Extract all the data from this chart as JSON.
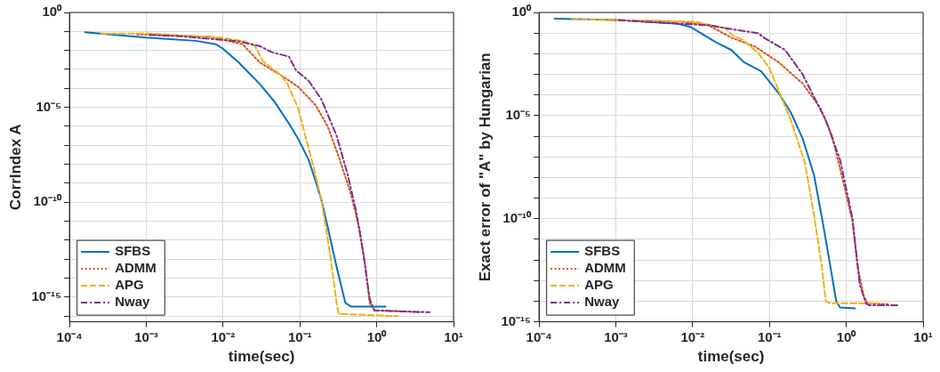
{
  "chart_data": [
    {
      "type": "line",
      "xlabel": "time(sec)",
      "ylabel": "CorrIndex A",
      "log": "xy",
      "grid": true,
      "legend": "bottom left",
      "marker": "none",
      "xlim": [
        0.0001,
        10
      ],
      "xticks": [
        {
          "value": 0.0001,
          "label": "10⁻⁴"
        },
        {
          "value": 0.001,
          "label": "10⁻³"
        },
        {
          "value": 0.01,
          "label": "10⁻²"
        },
        {
          "value": 0.1,
          "label": "10⁻¹"
        },
        {
          "value": 1,
          "label": "10⁰"
        },
        {
          "value": 10,
          "label": "10¹"
        }
      ],
      "ylim": [
        5e-17,
        1
      ],
      "yticks": [
        {
          "value": 1,
          "label": "10⁰"
        },
        {
          "value": 0.1,
          "label": null
        },
        {
          "value": 0.01,
          "label": null
        },
        {
          "value": 0.001,
          "label": null
        },
        {
          "value": 0.0001,
          "label": null
        },
        {
          "value": 1e-05,
          "label": "10⁻⁵"
        },
        {
          "value": 1e-06,
          "label": null
        },
        {
          "value": 1e-07,
          "label": null
        },
        {
          "value": 1e-08,
          "label": null
        },
        {
          "value": 1e-09,
          "label": null
        },
        {
          "value": 1e-10,
          "label": "10⁻¹⁰"
        },
        {
          "value": 1e-11,
          "label": null
        },
        {
          "value": 1e-12,
          "label": null
        },
        {
          "value": 1e-13,
          "label": null
        },
        {
          "value": 1e-14,
          "label": null
        },
        {
          "value": 1e-15,
          "label": "10⁻¹⁵"
        },
        {
          "value": 1e-16,
          "label": null
        }
      ],
      "series": [
        {
          "name": "SFBS",
          "color": "#0072bd",
          "line_style": "solid",
          "x": [
            0.00016,
            0.001,
            0.0044,
            0.0081,
            0.01,
            0.016,
            0.021,
            0.03,
            0.047,
            0.072,
            0.095,
            0.13,
            0.16,
            0.19,
            0.23,
            0.3,
            0.39,
            0.46,
            1.3
          ],
          "values": [
            0.091,
            0.047,
            0.032,
            0.021,
            0.012,
            0.0023,
            0.00074,
            0.00017,
            1.9e-05,
            1.4e-06,
            2.2e-07,
            1.7e-08,
            1.3e-09,
            1.4e-10,
            5e-12,
            4e-14,
            5e-16,
            3.2e-16,
            3.2e-16
          ]
        },
        {
          "name": "ADMM",
          "color": "#d95319",
          "line_style": "dotted",
          "x": [
            0.00076,
            0.0068,
            0.018,
            0.03,
            0.056,
            0.095,
            0.16,
            0.23,
            0.32,
            0.46,
            0.6,
            0.71,
            0.81,
            0.93,
            3.8
          ],
          "values": [
            0.07,
            0.052,
            0.021,
            0.0023,
            0.00051,
            0.00012,
            1.3e-05,
            9.8e-07,
            2.5e-08,
            2.9e-10,
            3.5e-12,
            4.2e-14,
            5e-16,
            2e-16,
            1.6e-16
          ]
        },
        {
          "name": "APG",
          "color": "#edb120",
          "line_style": "dashed",
          "x": [
            0.00026,
            0.0012,
            0.0095,
            0.019,
            0.026,
            0.033,
            0.056,
            0.069,
            0.095,
            0.12,
            0.15,
            0.19,
            0.25,
            0.3,
            0.32,
            1.9
          ],
          "values": [
            0.076,
            0.076,
            0.047,
            0.03,
            0.017,
            0.0027,
            0.00051,
            0.00017,
            8.9e-06,
            2.2e-07,
            7.9e-09,
            1.4e-10,
            1.3e-13,
            5e-16,
            1.3e-16,
            1e-16
          ]
        },
        {
          "name": "Nway",
          "color": "#7e2f8e",
          "line_style": "dashdot",
          "x": [
            0.0011,
            0.0028,
            0.016,
            0.03,
            0.043,
            0.072,
            0.089,
            0.13,
            0.19,
            0.3,
            0.42,
            0.54,
            0.68,
            0.81,
            0.93,
            4.9
          ],
          "values": [
            0.065,
            0.056,
            0.03,
            0.017,
            0.0081,
            0.0047,
            0.00089,
            0.00025,
            2.7e-05,
            3.2e-07,
            2.7e-09,
            3.2e-11,
            1.3e-13,
            7.9e-16,
            2e-16,
            1.6e-16
          ]
        }
      ]
    },
    {
      "type": "line",
      "xlabel": "time(sec)",
      "ylabel": "Exact error of \"A\" by Hungarian",
      "log": "xy",
      "grid": true,
      "legend": "bottom left",
      "marker": "none",
      "xlim": [
        0.0001,
        10
      ],
      "xticks": [
        {
          "value": 0.0001,
          "label": "10⁻⁴"
        },
        {
          "value": 0.001,
          "label": "10⁻³"
        },
        {
          "value": 0.01,
          "label": "10⁻²"
        },
        {
          "value": 0.1,
          "label": "10⁻¹"
        },
        {
          "value": 1,
          "label": "10⁰"
        },
        {
          "value": 10,
          "label": "10¹"
        }
      ],
      "ylim": [
        1e-15,
        1
      ],
      "yticks": [
        {
          "value": 1,
          "label": "10⁰"
        },
        {
          "value": 0.1,
          "label": null
        },
        {
          "value": 0.01,
          "label": null
        },
        {
          "value": 0.001,
          "label": null
        },
        {
          "value": 0.0001,
          "label": null
        },
        {
          "value": 1e-05,
          "label": "10⁻⁵"
        },
        {
          "value": 1e-06,
          "label": null
        },
        {
          "value": 1e-07,
          "label": null
        },
        {
          "value": 1e-08,
          "label": null
        },
        {
          "value": 1e-09,
          "label": null
        },
        {
          "value": 1e-10,
          "label": "10⁻¹⁰"
        },
        {
          "value": 1e-11,
          "label": null
        },
        {
          "value": 1e-12,
          "label": null
        },
        {
          "value": 1e-13,
          "label": null
        },
        {
          "value": 1e-14,
          "label": null
        },
        {
          "value": 1e-15,
          "label": "10⁻¹⁵"
        }
      ],
      "series": [
        {
          "name": "SFBS",
          "color": "#0072bd",
          "line_style": "solid",
          "x": [
            0.00016,
            0.0011,
            0.0065,
            0.0093,
            0.02,
            0.032,
            0.046,
            0.078,
            0.13,
            0.19,
            0.27,
            0.38,
            0.49,
            0.62,
            0.74,
            0.83,
            1.3
          ],
          "values": [
            0.5,
            0.43,
            0.28,
            0.2,
            0.036,
            0.015,
            0.004,
            0.0014,
            0.00013,
            1.4e-05,
            7.8e-07,
            1.3e-08,
            7.9e-11,
            5e-13,
            1e-14,
            5e-15,
            4.5e-15
          ]
        },
        {
          "name": "ADMM",
          "color": "#d95319",
          "line_style": "dotted",
          "x": [
            0.00076,
            0.0065,
            0.016,
            0.032,
            0.065,
            0.13,
            0.27,
            0.46,
            0.65,
            0.91,
            1.2,
            1.4,
            1.7,
            1.9,
            3.5
          ],
          "values": [
            0.43,
            0.37,
            0.24,
            0.06,
            0.022,
            0.004,
            0.00036,
            2.3e-05,
            1.1e-06,
            6.5e-09,
            7.9e-11,
            5e-13,
            1.6e-14,
            7.9e-15,
            7.1e-15
          ]
        },
        {
          "name": "APG",
          "color": "#edb120",
          "line_style": "dashed",
          "x": [
            0.00027,
            0.011,
            0.027,
            0.032,
            0.046,
            0.071,
            0.1,
            0.14,
            0.19,
            0.29,
            0.38,
            0.48,
            0.54,
            0.62,
            2.6
          ],
          "values": [
            0.47,
            0.35,
            0.17,
            0.085,
            0.044,
            0.011,
            0.002,
            9.1e-05,
            6e-06,
            5e-08,
            1.5e-10,
            5e-13,
            1e-14,
            7.9e-15,
            7.9e-15
          ]
        },
        {
          "name": "Nway",
          "color": "#7e2f8e",
          "line_style": "dashdot",
          "x": [
            0.0011,
            0.016,
            0.038,
            0.071,
            0.085,
            0.16,
            0.27,
            0.54,
            0.83,
            1.2,
            1.5,
            1.8,
            2.0,
            4.9
          ],
          "values": [
            0.42,
            0.24,
            0.14,
            0.1,
            0.06,
            0.015,
            0.001,
            6e-06,
            7.1e-08,
            1.1e-10,
            6.3e-14,
            7.9e-15,
            6.3e-15,
            6.3e-15
          ]
        }
      ]
    }
  ]
}
